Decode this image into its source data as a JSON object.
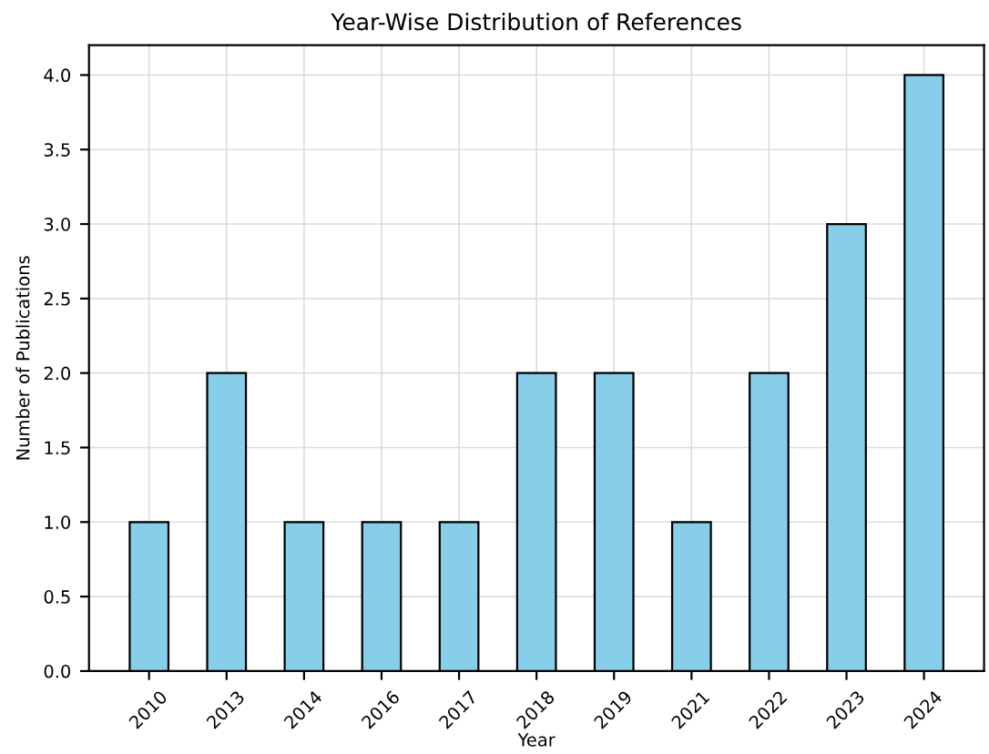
{
  "chart_data": {
    "type": "bar",
    "title": "Year-Wise Distribution of References",
    "xlabel": "Year",
    "ylabel": "Number of Publications",
    "categories": [
      "2010",
      "2013",
      "2014",
      "2016",
      "2017",
      "2018",
      "2019",
      "2021",
      "2022",
      "2023",
      "2024"
    ],
    "values": [
      1,
      2,
      1,
      1,
      1,
      2,
      2,
      1,
      2,
      3,
      4
    ],
    "color": "#87ceeb",
    "ylim": [
      0,
      4.2
    ],
    "yticks": [
      {
        "value": 0,
        "label": "0.0"
      },
      {
        "value": 0.5,
        "label": "0.5"
      },
      {
        "value": 1,
        "label": "1.0"
      },
      {
        "value": 1.5,
        "label": "1.5"
      },
      {
        "value": 2,
        "label": "2.0"
      },
      {
        "value": 2.5,
        "label": "2.5"
      },
      {
        "value": 3,
        "label": "3.0"
      },
      {
        "value": 3.5,
        "label": "3.5"
      },
      {
        "value": 4,
        "label": "4.0"
      }
    ],
    "grid": true,
    "legend": false
  }
}
